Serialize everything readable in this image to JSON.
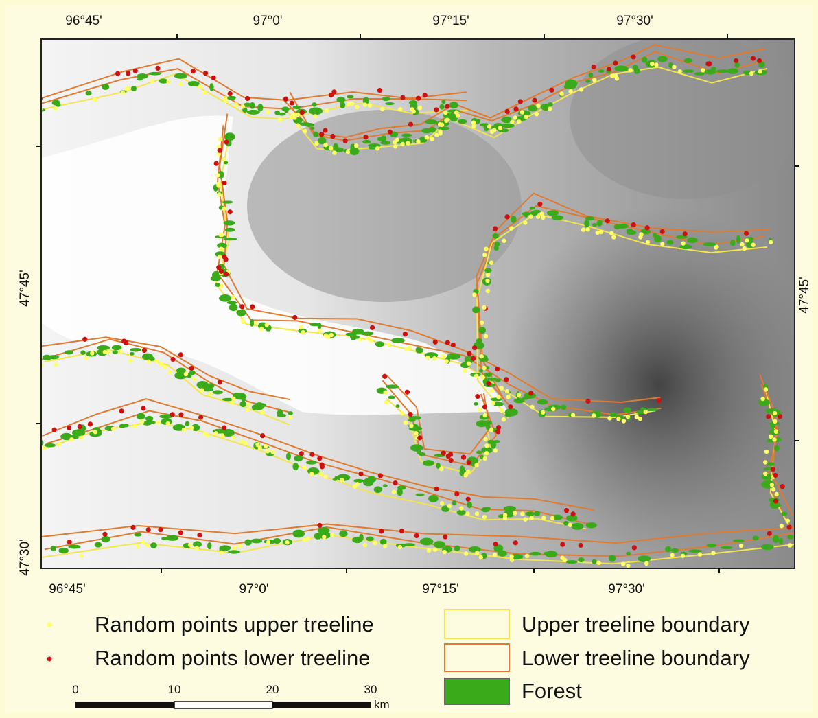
{
  "map": {
    "top_ticks": [
      "96°45'",
      "97°0'",
      "97°15'",
      "97°30'"
    ],
    "bottom_ticks": [
      "96°45'",
      "97°0'",
      "97°15'",
      "97°30'"
    ],
    "left_ticks": [
      "47°45'",
      "47°30'"
    ],
    "right_ticks": [
      "47°45'"
    ]
  },
  "legend": {
    "items": [
      {
        "label": "Random points upper treeline"
      },
      {
        "label": "Random points lower treeline"
      },
      {
        "label": "Upper treeline boundary"
      },
      {
        "label": "Lower treeline boundary"
      },
      {
        "label": "Forest"
      }
    ]
  },
  "scale_bar": {
    "labels": [
      "0",
      "10",
      "20",
      "30"
    ],
    "unit": "km"
  }
}
